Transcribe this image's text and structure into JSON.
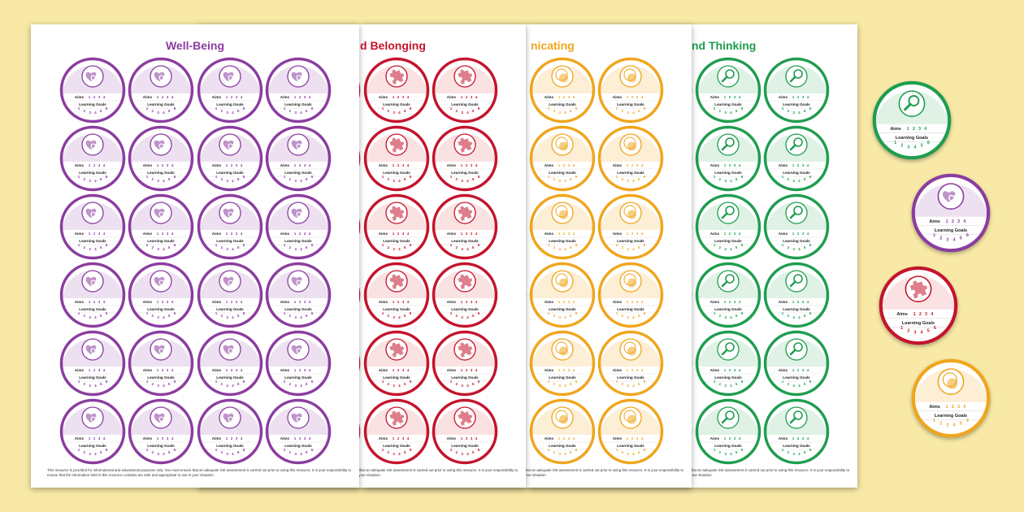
{
  "sheets": [
    {
      "title": "Well-Being",
      "color": "#8b3d9f",
      "tint": "#ede1f1"
    },
    {
      "title": "d Belonging",
      "color": "#c4142c",
      "tint": "#fbe2e2"
    },
    {
      "title": "nicating",
      "color": "#f0a51c",
      "tint": "#fdeed6"
    },
    {
      "title": "nd Thinking",
      "color": "#1f9d4f",
      "tint": "#dff2e5"
    }
  ],
  "sticker": {
    "aims_label": "Aims",
    "aims": [
      1,
      2,
      3,
      4
    ],
    "goals_label": "Learning Goals",
    "goals": [
      1,
      2,
      3,
      4,
      5,
      6
    ]
  },
  "disclaimer": "This resource is provided for informational and educational purposes only. You must ensure that an adequate risk assessment is carried out prior to using this resource. It is your responsibility to ensure that the information held in this resource contains are safe and appropriate to use in your situation."
}
